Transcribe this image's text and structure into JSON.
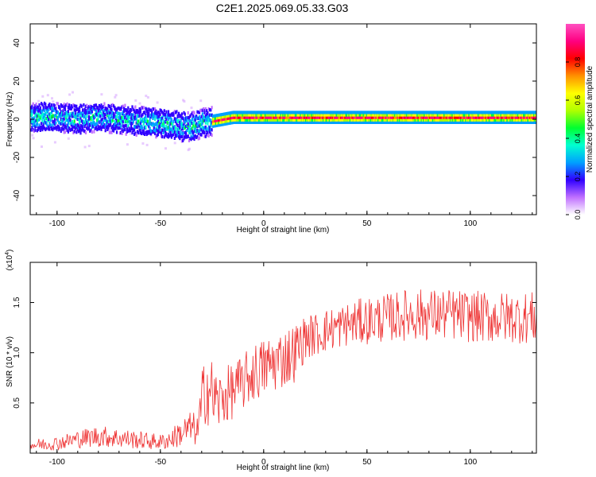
{
  "title": "C2E1.2025.069.05.33.G03",
  "chart_data": [
    {
      "type": "heatmap",
      "xlabel": "Height of straight line (km)",
      "ylabel": "Frequency (Hz)",
      "xlim": [
        -113,
        132
      ],
      "ylim": [
        -50,
        50
      ],
      "xticks": [
        -100,
        -50,
        0,
        50,
        100
      ],
      "yticks": [
        -40,
        -20,
        0,
        20,
        40
      ],
      "colorbar": {
        "label": "Normalized spectral amplitude",
        "range": [
          0,
          1
        ],
        "ticks": [
          "0.0",
          "0.2",
          "0.4",
          "0.6",
          "0.8"
        ],
        "colors": [
          "#ffffff",
          "#c070ff",
          "#3000ff",
          "#00a0ff",
          "#00ffd0",
          "#00ff30",
          "#b0ff00",
          "#ffff00",
          "#ff9000",
          "#ff0000",
          "#ff0080",
          "#ff50c0"
        ]
      },
      "center_frequency": [
        [
          -113,
          1
        ],
        [
          -100,
          1
        ],
        [
          -90,
          0
        ],
        [
          -80,
          1
        ],
        [
          -70,
          0
        ],
        [
          -60,
          -1
        ],
        [
          -50,
          -2
        ],
        [
          -45,
          -3
        ],
        [
          -40,
          -4
        ],
        [
          -35,
          -4
        ],
        [
          -30,
          -2
        ],
        [
          -25,
          -1
        ],
        [
          -20,
          0
        ],
        [
          -15,
          1
        ],
        [
          -10,
          1
        ],
        [
          0,
          1
        ],
        [
          25,
          1
        ],
        [
          50,
          1
        ],
        [
          75,
          1
        ],
        [
          100,
          1
        ],
        [
          132,
          1
        ]
      ]
    },
    {
      "type": "line",
      "xlabel": "Height of straight line (km)",
      "ylabel": "SNR (10 * v/v)",
      "yscale_label": "(x10",
      "yscale_exp": "4",
      "yscale_tail": ")",
      "xlim": [
        -113,
        132
      ],
      "ylim": [
        0,
        1.9
      ],
      "xticks": [
        -100,
        -50,
        0,
        50,
        100
      ],
      "yticks": [
        0.5,
        1.0,
        1.5
      ],
      "ytick_labels": [
        "0.5",
        "1.0",
        "1.5"
      ],
      "color": "#ee3333",
      "series": [
        {
          "x": [
            -113,
            -100,
            -90,
            -80,
            -70,
            -60,
            -50,
            -45,
            -40,
            -35,
            -32,
            -30,
            -28,
            -26,
            -24,
            -22,
            -20,
            -15,
            -10,
            -5,
            0,
            5,
            10,
            15,
            20,
            25,
            30,
            40,
            50,
            60,
            70,
            80,
            90,
            100,
            110,
            120,
            132
          ],
          "mean": [
            0.08,
            0.1,
            0.14,
            0.17,
            0.15,
            0.13,
            0.11,
            0.14,
            0.2,
            0.25,
            0.22,
            0.45,
            0.7,
            0.62,
            0.55,
            0.5,
            0.55,
            0.62,
            0.7,
            0.8,
            0.85,
            0.9,
            0.95,
            1.0,
            1.15,
            1.18,
            1.22,
            1.28,
            1.32,
            1.35,
            1.38,
            1.38,
            1.38,
            1.36,
            1.35,
            1.35,
            1.35
          ],
          "spread": [
            0.06,
            0.07,
            0.09,
            0.11,
            0.1,
            0.09,
            0.08,
            0.1,
            0.14,
            0.18,
            0.15,
            0.35,
            0.4,
            0.38,
            0.35,
            0.3,
            0.3,
            0.28,
            0.28,
            0.3,
            0.3,
            0.3,
            0.3,
            0.3,
            0.22,
            0.22,
            0.22,
            0.22,
            0.24,
            0.24,
            0.26,
            0.26,
            0.26,
            0.26,
            0.26,
            0.26,
            0.26
          ]
        }
      ]
    }
  ]
}
